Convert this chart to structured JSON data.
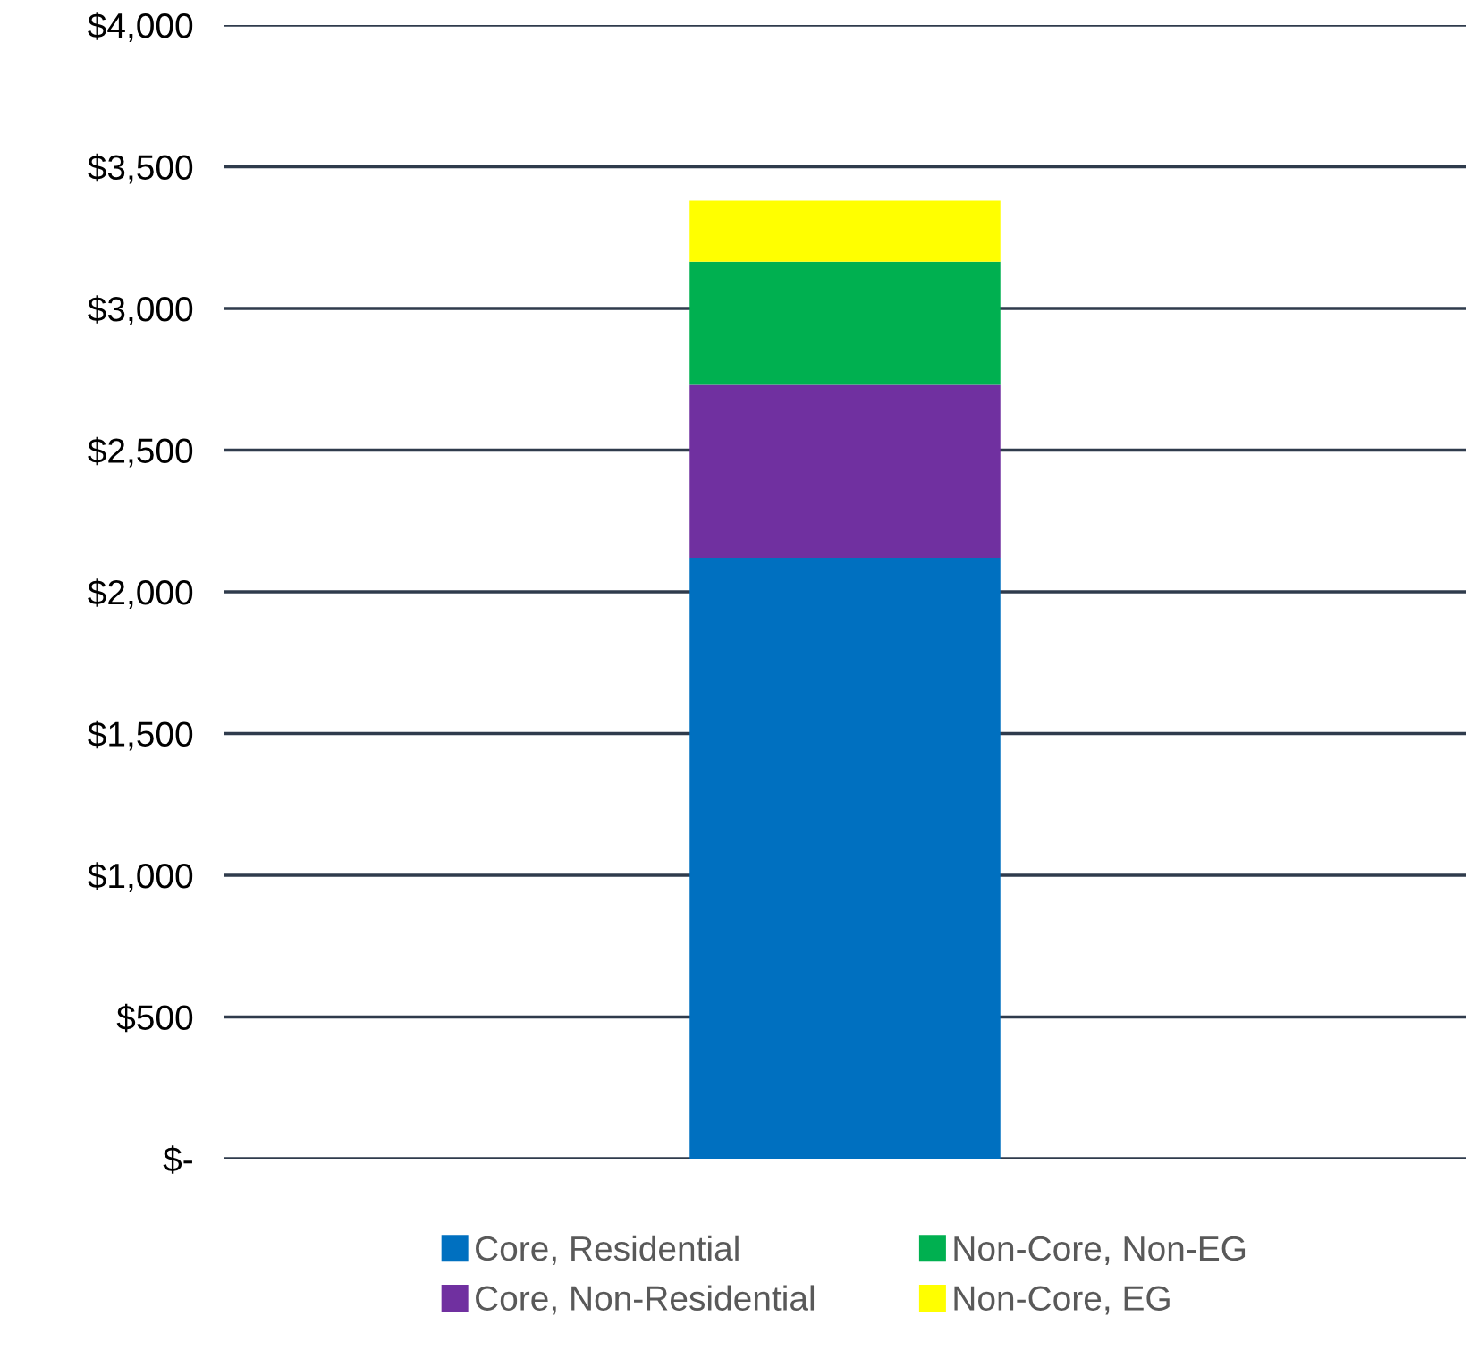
{
  "chart_data": {
    "type": "bar",
    "stacked": true,
    "categories": [
      null
    ],
    "series": [
      {
        "name": "Core, Residential",
        "color": "#0070c0",
        "values": [
          2120
        ]
      },
      {
        "name": "Core, Non-Residential",
        "color": "#7030a0",
        "values": [
          610
        ]
      },
      {
        "name": "Non-Core, Non-EG",
        "color": "#00b050",
        "values": [
          435
        ]
      },
      {
        "name": "Non-Core, EG",
        "color": "#ffff00",
        "values": [
          215
        ]
      }
    ],
    "ylim": [
      0,
      4000
    ],
    "yticks": [
      {
        "value": 0,
        "label": "$-"
      },
      {
        "value": 500,
        "label": "$500"
      },
      {
        "value": 1000,
        "label": "$1,000"
      },
      {
        "value": 1500,
        "label": "$1,500"
      },
      {
        "value": 2000,
        "label": "$2,000"
      },
      {
        "value": 2500,
        "label": "$2,500"
      },
      {
        "value": 3000,
        "label": "$3,000"
      },
      {
        "value": 3500,
        "label": "$3,500"
      },
      {
        "value": 4000,
        "label": "$4,000"
      }
    ],
    "grid": "y",
    "legend": "bottom"
  }
}
